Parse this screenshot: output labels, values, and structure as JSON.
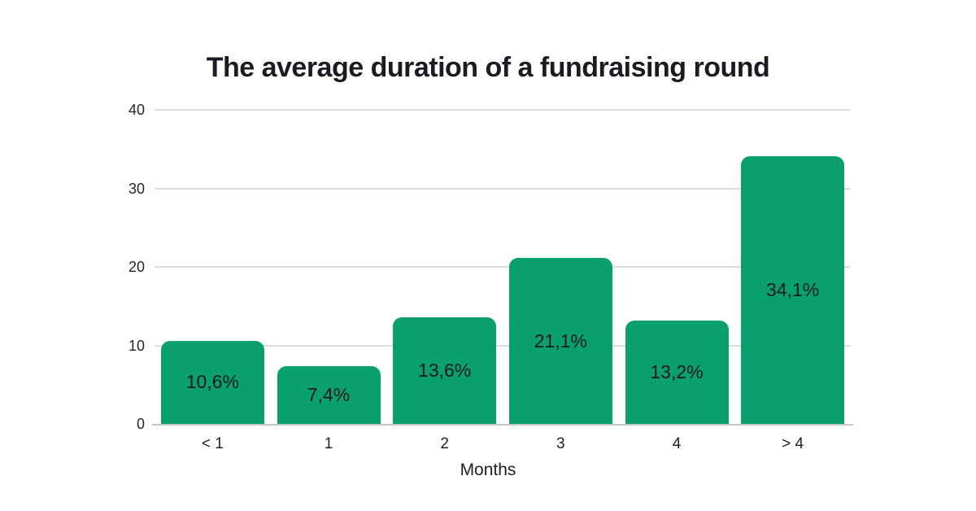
{
  "chart_data": {
    "type": "bar",
    "title": "The average duration of a fundraising round",
    "categories": [
      "< 1",
      "1",
      "2",
      "3",
      "4",
      "> 4"
    ],
    "values": [
      10.6,
      7.4,
      13.6,
      21.1,
      13.2,
      34.1
    ],
    "value_labels": [
      "10,6%",
      "7,4%",
      "13,6%",
      "21,1%",
      "13,2%",
      "34,1%"
    ],
    "xlabel": "Months",
    "ylabel": "",
    "ylim": [
      0,
      40
    ],
    "yticks": [
      0,
      10,
      20,
      30,
      40
    ],
    "grid": true,
    "legend": "none",
    "colors": {
      "bar": "#0aa06e",
      "value_label": "#1a1a1a",
      "gridline": "#dcdcdc",
      "axis_line": "#c6c6c6",
      "title_text": "#1b1b22",
      "background": "#ffffff"
    }
  }
}
